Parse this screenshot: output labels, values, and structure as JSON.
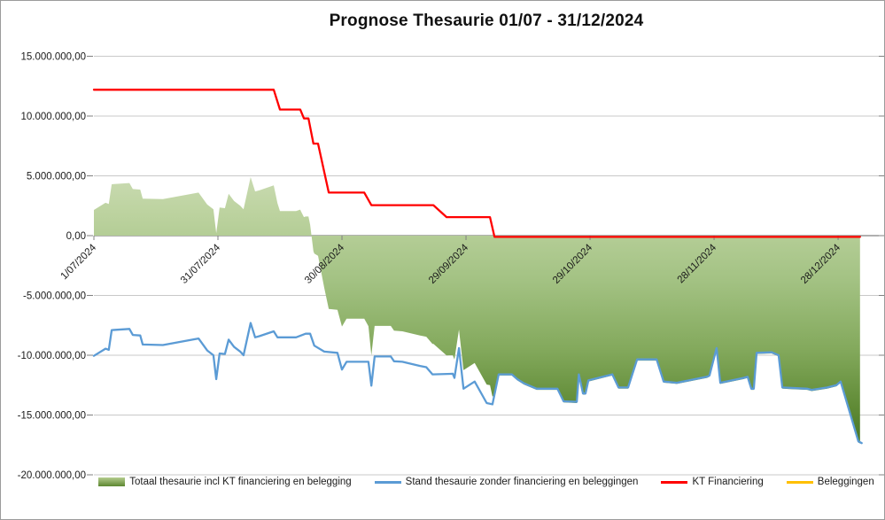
{
  "chart_data": {
    "type": "combo",
    "title": "Prognose Thesaurie 01/07 - 31/12/2024",
    "value_unit": "points stored as [day offset from 1/07/2024, value in millions EUR], values estimated from gridlines",
    "x_axis": {
      "label_rotation_deg": 45,
      "min_day": 0,
      "max_day": 189.8,
      "ticks": [
        {
          "day": 0,
          "label": "1/07/2024"
        },
        {
          "day": 30,
          "label": "31/07/2024"
        },
        {
          "day": 60,
          "label": "30/08/2024"
        },
        {
          "day": 90,
          "label": "29/09/2024"
        },
        {
          "day": 120,
          "label": "29/10/2024"
        },
        {
          "day": 150,
          "label": "28/11/2024"
        },
        {
          "day": 180,
          "label": "28/12/2024"
        }
      ]
    },
    "y_axis": {
      "min": -20000000,
      "max": 15000000,
      "step": 5000000,
      "grid": true,
      "tick_labels": [
        "15.000.000,00",
        "10.000.000,00",
        "5.000.000,00",
        "0,00",
        "-5.000.000,00",
        "-10.000.000,00",
        "-15.000.000,00",
        "-20.000.000,00"
      ],
      "tick_values_millions": [
        15,
        10,
        5,
        0,
        -5,
        -10,
        -15,
        -20
      ]
    },
    "legend": {
      "position": "bottom"
    },
    "series": [
      {
        "name": "Totaal thesaurie incl KT financiering en belegging",
        "type": "area",
        "color_gradient_top": "#dbe6cb",
        "color_gradient_bottom": "#356818",
        "derived": true,
        "derivation": "sum of the three line series (stand + KT financiering + beleggingen), baseline 0"
      },
      {
        "name": "Stand thesaurie zonder financiering en beleggingen",
        "type": "line",
        "color": "#5B9BD5",
        "points": [
          [
            0,
            -10.05
          ],
          [
            2.8,
            -9.45
          ],
          [
            3.6,
            -9.55
          ],
          [
            4.3,
            -7.9
          ],
          [
            8.6,
            -7.8
          ],
          [
            9.4,
            -8.3
          ],
          [
            11.2,
            -8.35
          ],
          [
            11.8,
            -9.1
          ],
          [
            16.7,
            -9.15
          ],
          [
            25.3,
            -8.6
          ],
          [
            27.4,
            -9.6
          ],
          [
            28.9,
            -10.0
          ],
          [
            29.6,
            -12.0
          ],
          [
            30.4,
            -9.85
          ],
          [
            31.7,
            -9.9
          ],
          [
            32.6,
            -8.7
          ],
          [
            33.9,
            -9.3
          ],
          [
            35.4,
            -9.7
          ],
          [
            36.2,
            -10.0
          ],
          [
            37.9,
            -7.3
          ],
          [
            39.0,
            -8.5
          ],
          [
            40.1,
            -8.4
          ],
          [
            43.5,
            -8.0
          ],
          [
            44.4,
            -8.5
          ],
          [
            48.9,
            -8.5
          ],
          [
            50.1,
            -8.35
          ],
          [
            51.2,
            -8.2
          ],
          [
            52.3,
            -8.2
          ],
          [
            53.3,
            -9.2
          ],
          [
            55.7,
            -9.7
          ],
          [
            58.9,
            -9.8
          ],
          [
            60.0,
            -11.2
          ],
          [
            61.1,
            -10.55
          ],
          [
            66.4,
            -10.55
          ],
          [
            67.1,
            -12.55
          ],
          [
            67.9,
            -10.1
          ],
          [
            71.8,
            -10.1
          ],
          [
            72.6,
            -10.5
          ],
          [
            74.6,
            -10.55
          ],
          [
            78.9,
            -10.9
          ],
          [
            80.4,
            -11.0
          ],
          [
            81.9,
            -11.6
          ],
          [
            86.8,
            -11.55
          ],
          [
            87.2,
            -11.9
          ],
          [
            88.3,
            -9.4
          ],
          [
            89.4,
            -12.8
          ],
          [
            92.1,
            -12.2
          ],
          [
            95.0,
            -14.0
          ],
          [
            96.4,
            -14.1
          ],
          [
            97.9,
            -11.6
          ],
          [
            101.1,
            -11.6
          ],
          [
            102.4,
            -12.0
          ],
          [
            104.0,
            -12.35
          ],
          [
            107.1,
            -12.8
          ],
          [
            112.1,
            -12.8
          ],
          [
            113.6,
            -13.85
          ],
          [
            116.8,
            -13.9
          ],
          [
            117.3,
            -11.6
          ],
          [
            118.3,
            -13.2
          ],
          [
            118.9,
            -13.2
          ],
          [
            119.6,
            -12.1
          ],
          [
            125.4,
            -11.6
          ],
          [
            126.9,
            -12.7
          ],
          [
            129.2,
            -12.7
          ],
          [
            131.4,
            -10.35
          ],
          [
            136.1,
            -10.35
          ],
          [
            137.8,
            -12.2
          ],
          [
            141.0,
            -12.3
          ],
          [
            148.3,
            -11.8
          ],
          [
            148.9,
            -11.7
          ],
          [
            150.6,
            -9.4
          ],
          [
            151.5,
            -12.3
          ],
          [
            157.1,
            -11.9
          ],
          [
            158.1,
            -11.8
          ],
          [
            159.0,
            -12.8
          ],
          [
            159.6,
            -12.8
          ],
          [
            160.3,
            -9.8
          ],
          [
            163.9,
            -9.75
          ],
          [
            165.6,
            -10.0
          ],
          [
            166.5,
            -12.7
          ],
          [
            172.5,
            -12.8
          ],
          [
            173.6,
            -12.9
          ],
          [
            177.4,
            -12.7
          ],
          [
            179.6,
            -12.5
          ],
          [
            180.6,
            -12.2
          ],
          [
            184.9,
            -17.2
          ],
          [
            185.7,
            -17.35
          ]
        ]
      },
      {
        "name": "KT Financiering",
        "type": "line",
        "color": "#FF0000",
        "points": [
          [
            0,
            12.2
          ],
          [
            43.5,
            12.2
          ],
          [
            45.0,
            10.55
          ],
          [
            49.9,
            10.55
          ],
          [
            50.8,
            9.8
          ],
          [
            51.9,
            9.8
          ],
          [
            53.1,
            7.7
          ],
          [
            54.2,
            7.7
          ],
          [
            56.8,
            3.6
          ],
          [
            65.4,
            3.6
          ],
          [
            67.1,
            2.55
          ],
          [
            82.1,
            2.55
          ],
          [
            85.3,
            1.55
          ],
          [
            95.8,
            1.55
          ],
          [
            96.9,
            -0.1
          ],
          [
            185.3,
            -0.1
          ]
        ]
      },
      {
        "name": "Beleggingen",
        "type": "line",
        "color": "#FFC000",
        "points": [],
        "note": "legend entry only; no visible curve in the plot (value 0)"
      }
    ]
  }
}
